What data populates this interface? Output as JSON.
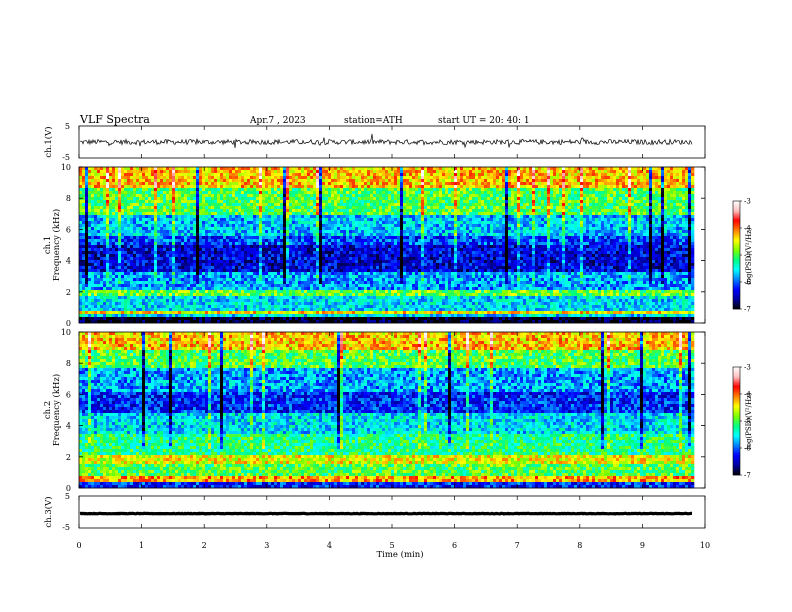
{
  "header": {
    "title": "VLF  Spectra",
    "date": "Apr.7  , 2023",
    "station": "station=ATH",
    "start_ut": "start  UT  =    20: 40: 1"
  },
  "chart_data": [
    {
      "type": "line",
      "name": "ch1-waveform",
      "ylabel": "ch.1(V)",
      "ytick_labels": [
        "5",
        "-5"
      ],
      "ylim": [
        -5,
        5
      ],
      "xlim": [
        0,
        10
      ],
      "data_extent_min": 9.8,
      "level": 0.0,
      "noise_amplitude": 1.0
    },
    {
      "type": "heatmap",
      "name": "ch1-spectrogram",
      "ylabel": "ch.1\nFrequency  (kHz)",
      "ylabel_line1": "ch.1",
      "ylabel_line2": "Frequency  (kHz)",
      "ylim": [
        0,
        10
      ],
      "yticks": [
        "0",
        "2",
        "4",
        "6",
        "8",
        "10"
      ],
      "xlim": [
        0,
        10
      ],
      "data_extent_min": 9.8,
      "value_range_log": [
        -7,
        -3
      ],
      "colorbar": {
        "label": "log(PSD)(V²/Hz)",
        "ticks": [
          "-3",
          "-4",
          "-5",
          "-6",
          "-7"
        ]
      },
      "bands_khz": [
        {
          "f": [
            0.0,
            0.3
          ],
          "level": -7.0
        },
        {
          "f": [
            0.3,
            0.5
          ],
          "level": -5.6
        },
        {
          "f": [
            0.5,
            0.7
          ],
          "level": -4.4
        },
        {
          "f": [
            0.7,
            1.8
          ],
          "level": -5.6
        },
        {
          "f": [
            1.8,
            2.2
          ],
          "level": -4.9
        },
        {
          "f": [
            2.2,
            3.3
          ],
          "level": -5.8
        },
        {
          "f": [
            3.3,
            5.0
          ],
          "level": -6.4
        },
        {
          "f": [
            5.0,
            5.6
          ],
          "level": -6.1
        },
        {
          "f": [
            5.6,
            7.0
          ],
          "level": -5.7
        },
        {
          "f": [
            7.0,
            8.6
          ],
          "level": -5.0
        },
        {
          "f": [
            8.6,
            10.0
          ],
          "level": -4.3
        }
      ]
    },
    {
      "type": "heatmap",
      "name": "ch2-spectrogram",
      "ylabel_line1": "ch.2",
      "ylabel_line2": "Frequency  (kHz)",
      "ylim": [
        0,
        10
      ],
      "yticks": [
        "0",
        "2",
        "4",
        "6",
        "8",
        "10"
      ],
      "xlim": [
        0,
        10
      ],
      "data_extent_min": 9.8,
      "value_range_log": [
        -7,
        -3
      ],
      "colorbar": {
        "label": "log(PSD)(V²/Hz)",
        "ticks": [
          "-3",
          "-4",
          "-5",
          "-6",
          "-7"
        ]
      },
      "bands_khz": [
        {
          "f": [
            0.0,
            0.3
          ],
          "level": -6.2
        },
        {
          "f": [
            0.3,
            0.7
          ],
          "level": -4.2
        },
        {
          "f": [
            0.7,
            1.6
          ],
          "level": -5.0
        },
        {
          "f": [
            1.6,
            2.2
          ],
          "level": -4.5
        },
        {
          "f": [
            2.2,
            3.5
          ],
          "level": -5.2
        },
        {
          "f": [
            3.5,
            4.8
          ],
          "level": -5.6
        },
        {
          "f": [
            4.8,
            6.2
          ],
          "level": -6.2
        },
        {
          "f": [
            6.2,
            7.6
          ],
          "level": -5.8
        },
        {
          "f": [
            7.6,
            8.8
          ],
          "level": -5.0
        },
        {
          "f": [
            8.8,
            10.0
          ],
          "level": -4.3
        }
      ]
    },
    {
      "type": "line",
      "name": "ch3-waveform",
      "ylabel": "ch.3(V)",
      "ytick_labels": [
        "5",
        "-5"
      ],
      "ylim": [
        -5,
        5
      ],
      "xlim": [
        0,
        10
      ],
      "data_extent_min": 9.8,
      "level": -0.5,
      "noise_amplitude": 0.1,
      "xlabel": "Time  (min)",
      "xticks": [
        "0",
        "1",
        "2",
        "3",
        "4",
        "5",
        "6",
        "7",
        "8",
        "9",
        "10"
      ]
    }
  ],
  "colors": {
    "colormap": [
      "#000000",
      "#0000a0",
      "#0000ff",
      "#0080ff",
      "#00ffff",
      "#00ff80",
      "#80ff00",
      "#ffff00",
      "#ff8000",
      "#ff0000",
      "#ffc0c0",
      "#ffffff"
    ]
  }
}
